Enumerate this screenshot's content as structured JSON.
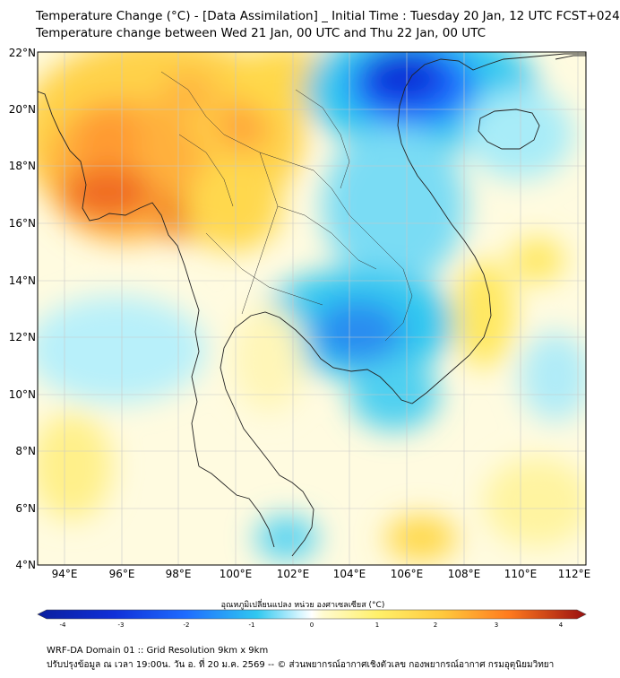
{
  "title": {
    "line1": "Temperature Change (°C) - [Data Assimilation] _ Initial Time : Tuesday 20 Jan, 12 UTC FCST+024",
    "line2": "Temperature change between Wed 21 Jan, 00 UTC and Thu 22 Jan, 00 UTC"
  },
  "axes": {
    "lat_labels": [
      "22°N",
      "20°N",
      "18°N",
      "16°N",
      "14°N",
      "12°N",
      "10°N",
      "8°N",
      "6°N",
      "4°N"
    ],
    "lon_labels": [
      "94°E",
      "96°E",
      "98°E",
      "100°E",
      "102°E",
      "104°E",
      "106°E",
      "108°E",
      "110°E",
      "112°E"
    ]
  },
  "colorbar": {
    "title": "อุณหภูมิเปลี่ยนแปลง หน่วย องศาเซลเซียส (°C)",
    "ticks": [
      "-4",
      "-3",
      "-2",
      "-1",
      "0",
      "1",
      "2",
      "3",
      "4"
    ],
    "range": [
      -4,
      4
    ]
  },
  "footer": {
    "line1": "WRF-DA Domain 01 :: Grid Resolution 9km x 9km",
    "line2": "ปรับปรุงข้อมูล ณ เวลา 19:00น. วัน อ. ที่ 20 ม.ค. 2569 -- © ส่วนพยากรณ์อากาศเชิงตัวเลข กองพยากรณ์อากาศ กรมอุตุนิยมวิทยา"
  },
  "colors": {
    "cold_extreme": "#0a1e9e",
    "cold": "#1e5cff",
    "cool": "#30c8f0",
    "neutral": "#ffffff",
    "warm": "#fff06a",
    "hot": "#ff9a1e",
    "hot_extreme": "#e8321c"
  }
}
